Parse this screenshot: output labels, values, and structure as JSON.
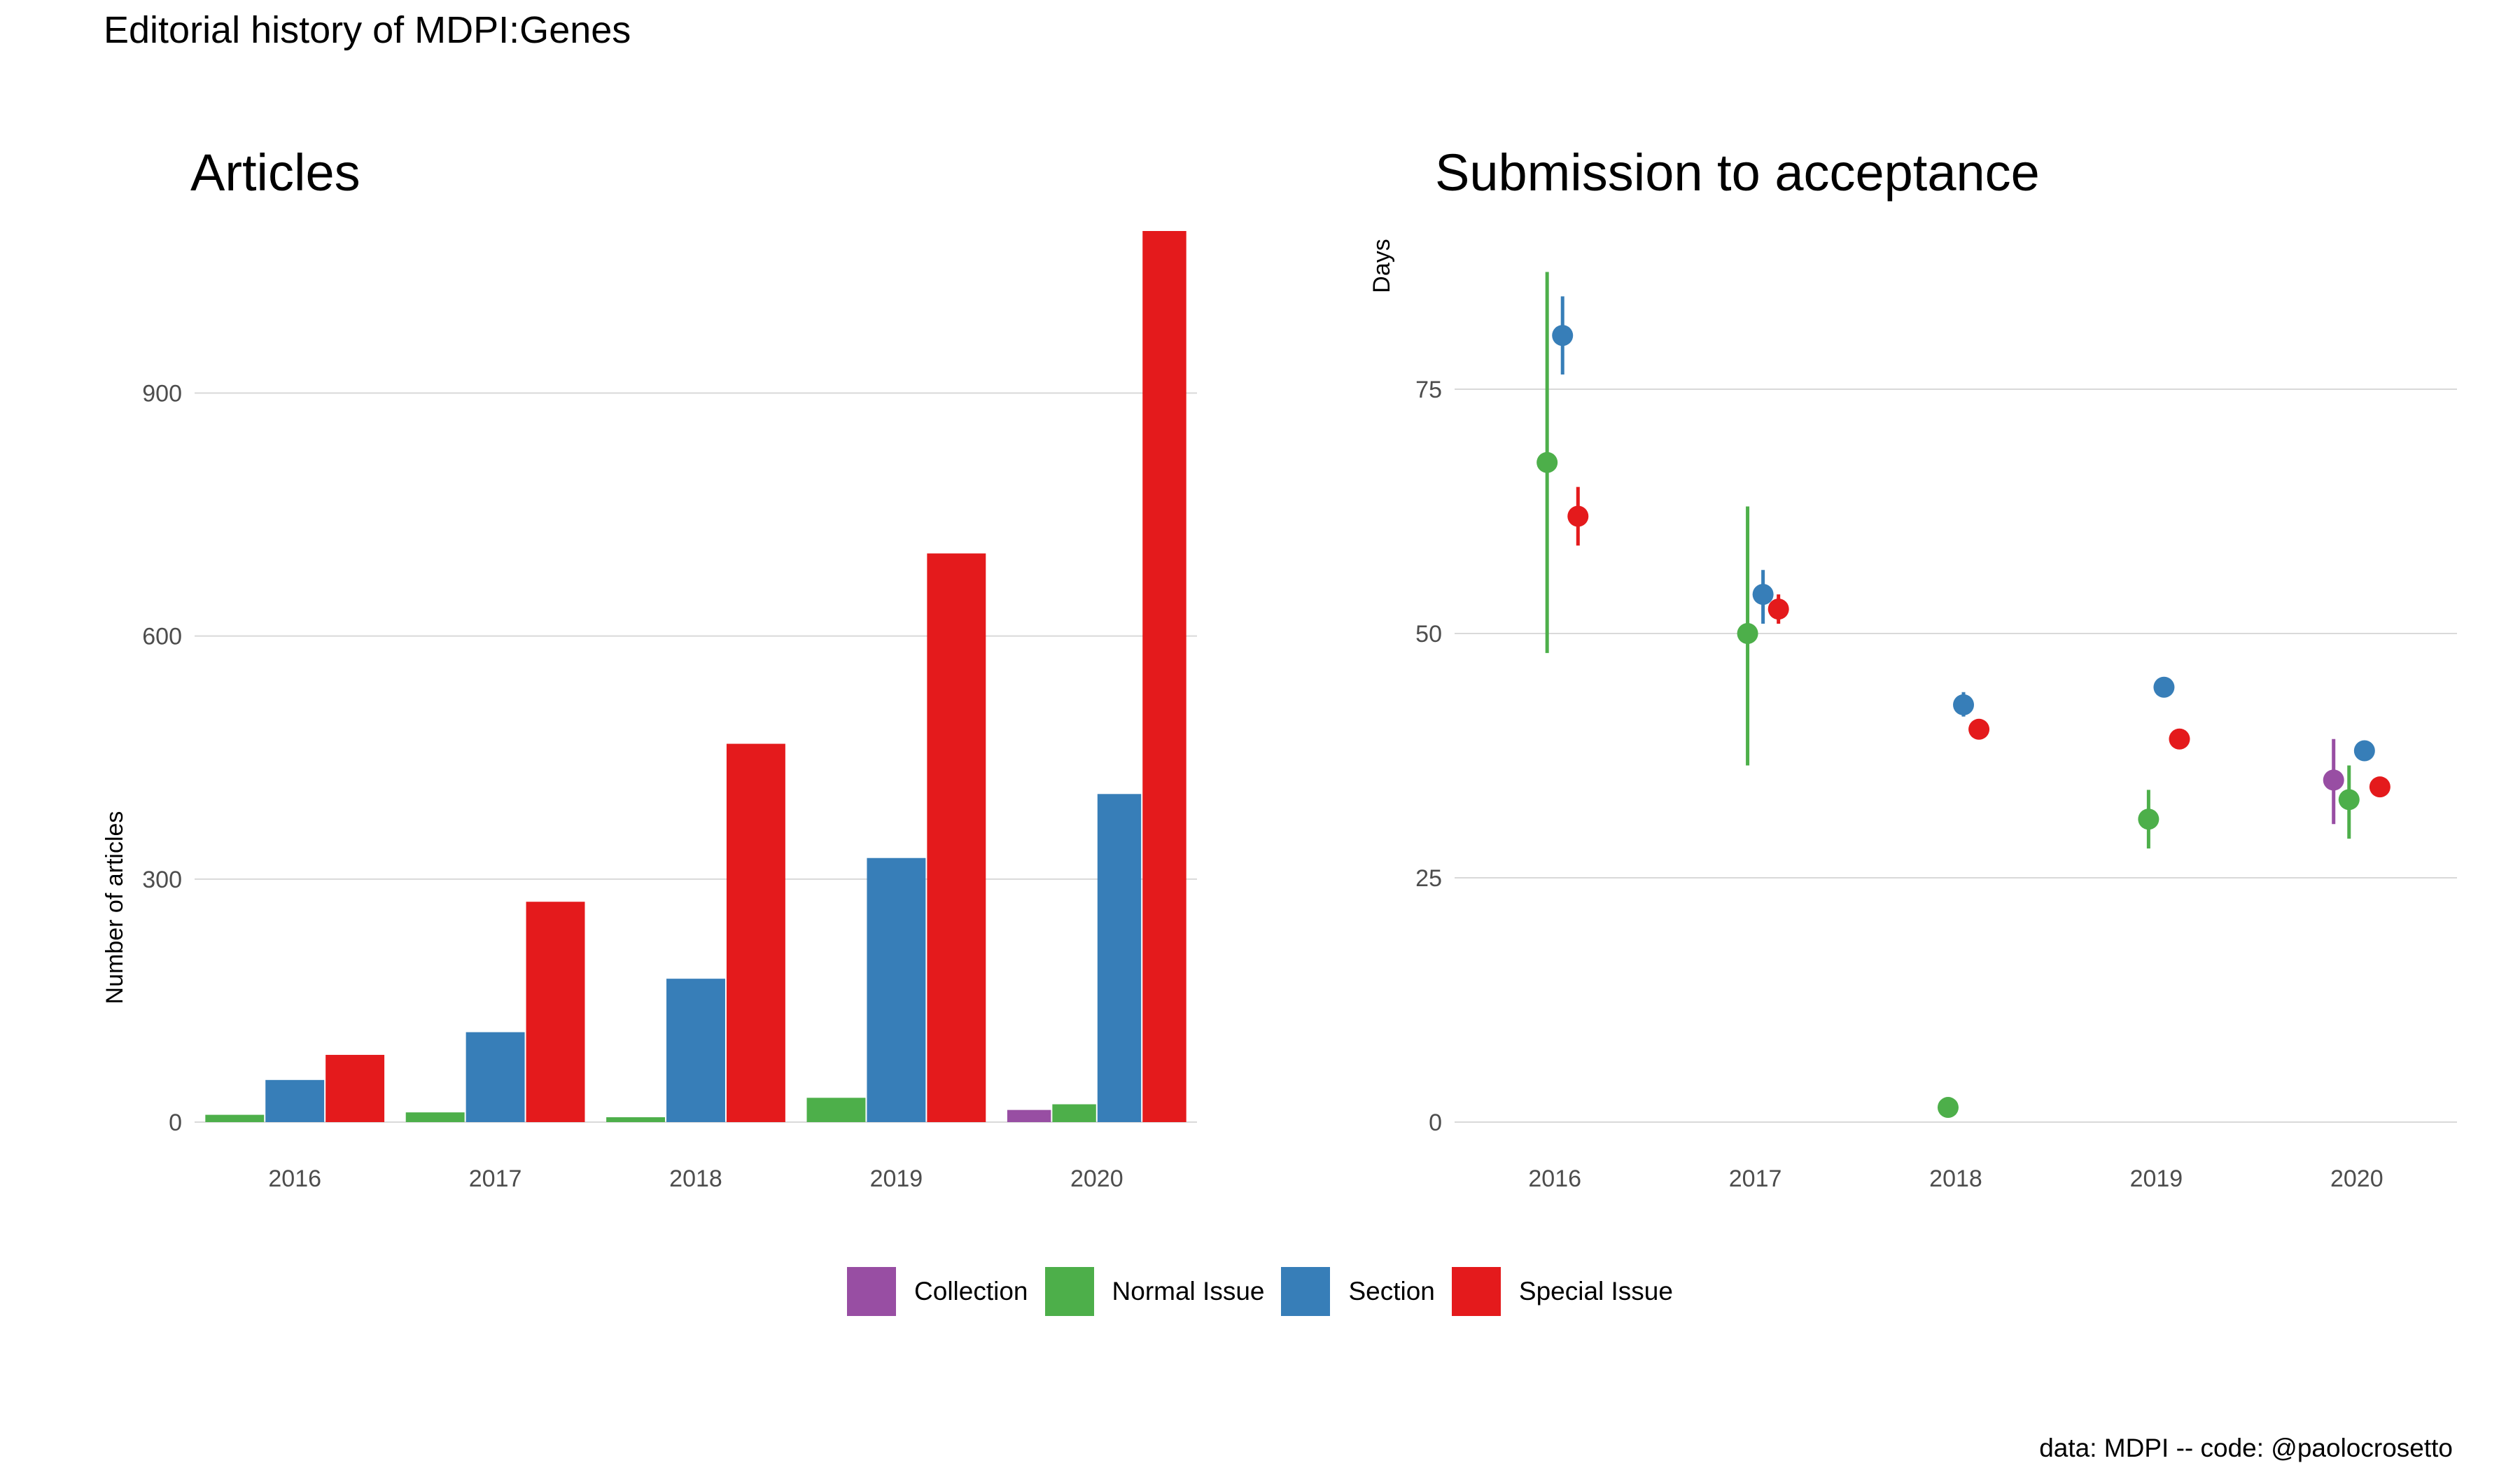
{
  "figure": {
    "title": "Editorial history of MDPI:Genes",
    "caption": "data: MDPI -- code: @paolocrosetto"
  },
  "legend": {
    "items": [
      {
        "label": "Collection",
        "color": "#984EA3"
      },
      {
        "label": "Normal Issue",
        "color": "#4DAF4A"
      },
      {
        "label": "Section",
        "color": "#377EB8"
      },
      {
        "label": "Special Issue",
        "color": "#E41A1C"
      }
    ]
  },
  "chart_data": [
    {
      "type": "bar",
      "title": "Articles",
      "ylabel": "Number of articles",
      "xlabel": "",
      "categories": [
        "2016",
        "2017",
        "2018",
        "2019",
        "2020"
      ],
      "ylim": [
        0,
        1100
      ],
      "yticks": [
        0,
        300,
        600,
        900
      ],
      "grid": true,
      "series": [
        {
          "name": "Collection",
          "color": "#984EA3",
          "values": [
            null,
            null,
            null,
            null,
            15
          ]
        },
        {
          "name": "Normal Issue",
          "color": "#4DAF4A",
          "values": [
            9,
            12,
            6,
            30,
            22
          ]
        },
        {
          "name": "Section",
          "color": "#377EB8",
          "values": [
            52,
            111,
            177,
            326,
            405
          ]
        },
        {
          "name": "Special Issue",
          "color": "#E41A1C",
          "values": [
            83,
            272,
            467,
            702,
            1100
          ]
        }
      ]
    },
    {
      "type": "scatter",
      "title": "Submission to acceptance",
      "ylabel": "Days",
      "xlabel": "",
      "categories": [
        "2016",
        "2017",
        "2018",
        "2019",
        "2020"
      ],
      "ylim": [
        0,
        87
      ],
      "yticks": [
        0,
        25,
        50,
        75
      ],
      "grid": true,
      "series": [
        {
          "name": "Collection",
          "color": "#984EA3",
          "points": [
            {
              "x": "2020",
              "y": 35,
              "low": 30.5,
              "high": 39.2
            }
          ]
        },
        {
          "name": "Normal Issue",
          "color": "#4DAF4A",
          "points": [
            {
              "x": "2016",
              "y": 67.5,
              "low": 48,
              "high": 87
            },
            {
              "x": "2017",
              "y": 50,
              "low": 36.5,
              "high": 63
            },
            {
              "x": "2018",
              "y": 1.5,
              "low": null,
              "high": null
            },
            {
              "x": "2019",
              "y": 31,
              "low": 28,
              "high": 34
            },
            {
              "x": "2020",
              "y": 33,
              "low": 29,
              "high": 36.5
            }
          ]
        },
        {
          "name": "Section",
          "color": "#377EB8",
          "points": [
            {
              "x": "2016",
              "y": 80.5,
              "low": 76.5,
              "high": 84.5
            },
            {
              "x": "2017",
              "y": 54,
              "low": 51,
              "high": 56.5
            },
            {
              "x": "2018",
              "y": 42.7,
              "low": 41.5,
              "high": 44
            },
            {
              "x": "2019",
              "y": 44.5,
              "low": null,
              "high": null
            },
            {
              "x": "2020",
              "y": 38,
              "low": null,
              "high": null
            }
          ]
        },
        {
          "name": "Special Issue",
          "color": "#E41A1C",
          "points": [
            {
              "x": "2016",
              "y": 62,
              "low": 59,
              "high": 65
            },
            {
              "x": "2017",
              "y": 52.5,
              "low": 51,
              "high": 54
            },
            {
              "x": "2018",
              "y": 40.2,
              "low": null,
              "high": null
            },
            {
              "x": "2019",
              "y": 39.2,
              "low": null,
              "high": null
            },
            {
              "x": "2020",
              "y": 34.3,
              "low": null,
              "high": null
            }
          ]
        }
      ]
    }
  ]
}
